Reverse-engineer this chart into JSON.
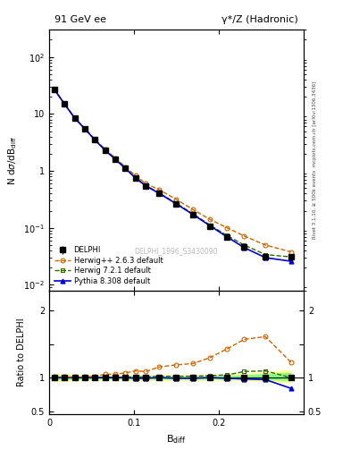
{
  "title_left": "91 GeV ee",
  "title_right": "γ*/Z (Hadronic)",
  "ylabel_main": "N dσ/dB_{diff}",
  "ylabel_ratio": "Ratio to DELPHI",
  "xlabel": "B_{diff}",
  "watermark": "DELPHI_1996_S3430090",
  "right_label": "mcplots.cern.ch [arXiv:1306.3436]",
  "right_label2": "Rivet 3.1.10, ≥ 500k events",
  "x_data": [
    0.006,
    0.018,
    0.03,
    0.042,
    0.054,
    0.066,
    0.078,
    0.09,
    0.102,
    0.114,
    0.13,
    0.15,
    0.17,
    0.19,
    0.21,
    0.23,
    0.255,
    0.285
  ],
  "delphi_y": [
    27.0,
    15.0,
    8.5,
    5.5,
    3.5,
    2.3,
    1.6,
    1.1,
    0.75,
    0.55,
    0.4,
    0.265,
    0.172,
    0.108,
    0.07,
    0.046,
    0.031,
    0.031
  ],
  "delphi_err": [
    1.5,
    0.8,
    0.4,
    0.3,
    0.2,
    0.12,
    0.09,
    0.07,
    0.05,
    0.04,
    0.025,
    0.018,
    0.012,
    0.008,
    0.006,
    0.004,
    0.003,
    0.003
  ],
  "herwig263_y": [
    27.2,
    15.1,
    8.6,
    5.55,
    3.58,
    2.42,
    1.68,
    1.17,
    0.825,
    0.6,
    0.465,
    0.315,
    0.208,
    0.14,
    0.1,
    0.072,
    0.05,
    0.038
  ],
  "herwig721_y": [
    27.0,
    15.1,
    8.5,
    5.5,
    3.51,
    2.31,
    1.61,
    1.11,
    0.755,
    0.555,
    0.408,
    0.27,
    0.175,
    0.111,
    0.073,
    0.05,
    0.034,
    0.031
  ],
  "pythia8_y": [
    27.0,
    15.0,
    8.5,
    5.49,
    3.49,
    2.3,
    1.6,
    1.1,
    0.745,
    0.545,
    0.402,
    0.263,
    0.17,
    0.108,
    0.069,
    0.045,
    0.03,
    0.026
  ],
  "herwig263_ratio": [
    1.01,
    1.01,
    1.01,
    1.01,
    1.02,
    1.05,
    1.05,
    1.07,
    1.1,
    1.09,
    1.16,
    1.19,
    1.21,
    1.3,
    1.43,
    1.57,
    1.61,
    1.23
  ],
  "herwig721_ratio": [
    1.0,
    1.0,
    1.0,
    1.0,
    1.0,
    1.0,
    1.0,
    1.01,
    1.01,
    1.01,
    1.02,
    1.02,
    1.02,
    1.03,
    1.04,
    1.09,
    1.1,
    1.0
  ],
  "pythia8_ratio": [
    1.0,
    1.0,
    1.0,
    1.0,
    1.0,
    1.0,
    1.0,
    1.0,
    0.99,
    0.99,
    1.0,
    0.99,
    0.99,
    1.0,
    0.99,
    0.98,
    0.97,
    0.84
  ],
  "band_yellow_lo": [
    0.935,
    0.945,
    0.95,
    0.955,
    0.955,
    0.955,
    0.955,
    0.955,
    0.955,
    0.955,
    0.955,
    0.955,
    0.955,
    0.955,
    0.955,
    0.955,
    0.945,
    0.92
  ],
  "band_yellow_hi": [
    1.065,
    1.055,
    1.05,
    1.045,
    1.045,
    1.045,
    1.045,
    1.045,
    1.045,
    1.045,
    1.045,
    1.045,
    1.045,
    1.045,
    1.055,
    1.065,
    1.085,
    1.12
  ],
  "band_green_lo": [
    0.965,
    0.97,
    0.975,
    0.977,
    0.977,
    0.977,
    0.977,
    0.977,
    0.977,
    0.977,
    0.977,
    0.977,
    0.977,
    0.977,
    0.977,
    0.977,
    0.968,
    0.955
  ],
  "band_green_hi": [
    1.035,
    1.03,
    1.025,
    1.023,
    1.023,
    1.023,
    1.023,
    1.023,
    1.023,
    1.023,
    1.023,
    1.023,
    1.023,
    1.023,
    1.033,
    1.043,
    1.062,
    1.075
  ],
  "color_delphi": "#000000",
  "color_herwig263": "#cc6600",
  "color_herwig721": "#336600",
  "color_pythia8": "#0000cc",
  "color_band_yellow": "#ffff88",
  "color_band_green": "#88ff88",
  "xlim": [
    0.0,
    0.3
  ],
  "ylim_main": [
    0.008,
    300
  ],
  "ylim_ratio": [
    0.45,
    2.3
  ],
  "legend_entries": [
    "DELPHI",
    "Herwig++ 2.6.3 default",
    "Herwig 7.2.1 default",
    "Pythia 8.308 default"
  ]
}
